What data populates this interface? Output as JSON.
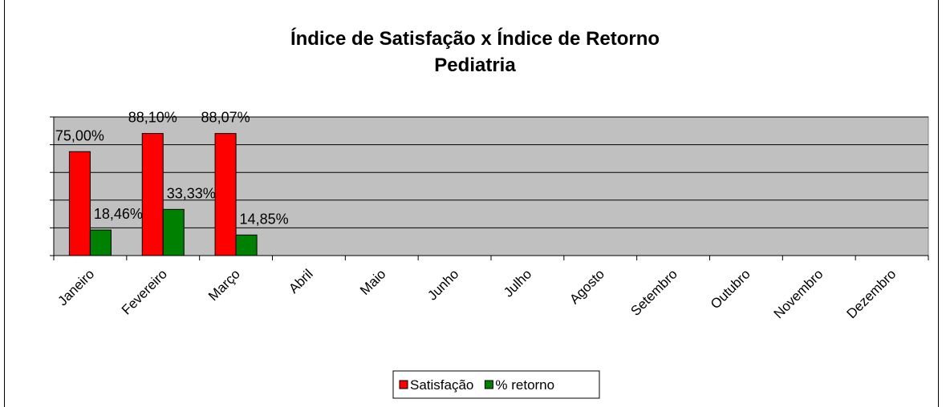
{
  "chart_data": {
    "type": "bar",
    "title": "Índice de Satisfação x Índice de Retorno",
    "subtitle": "Pediatria",
    "categories": [
      "Janeiro",
      "Fevereiro",
      "Março",
      "Abril",
      "Maio",
      "Junho",
      "Julho",
      "Agosto",
      "Setembro",
      "Outubro",
      "Novembro",
      "Dezembro"
    ],
    "series": [
      {
        "name": "Satisfação",
        "color": "#ff0000",
        "values": [
          75,
          88.1,
          88.07,
          null,
          null,
          null,
          null,
          null,
          null,
          null,
          null,
          null
        ],
        "value_labels": [
          "75,00%",
          "88,10%",
          "88,07%",
          null,
          null,
          null,
          null,
          null,
          null,
          null,
          null,
          null
        ]
      },
      {
        "name": "% retorno",
        "color": "#008000",
        "values": [
          18.46,
          33.33,
          14.85,
          null,
          null,
          null,
          null,
          null,
          null,
          null,
          null,
          null
        ],
        "value_labels": [
          "18,46%",
          "33,33%",
          "14,85%",
          null,
          null,
          null,
          null,
          null,
          null,
          null,
          null,
          null
        ]
      }
    ],
    "ylim": [
      0,
      100
    ],
    "yticks": [
      0,
      20,
      40,
      60,
      80,
      100
    ],
    "grid": true,
    "legend": "bottom"
  }
}
